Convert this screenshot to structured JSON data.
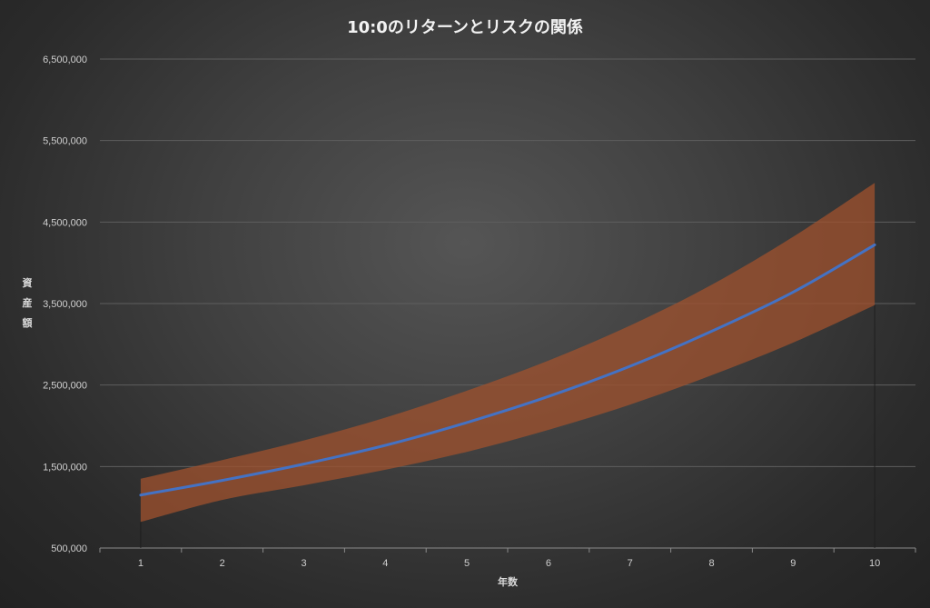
{
  "chart_data": {
    "type": "area",
    "title": "10:0のリターンとリスクの関係",
    "xlabel": "年数",
    "ylabel": "資産額",
    "categories": [
      "1",
      "2",
      "3",
      "4",
      "5",
      "6",
      "7",
      "8",
      "9",
      "10"
    ],
    "ylim": [
      500000,
      6500000
    ],
    "yticks": [
      500000,
      1500000,
      2500000,
      3500000,
      4500000,
      5500000,
      6500000
    ],
    "ytick_labels": [
      "500,000",
      "1,500,000",
      "2,500,000",
      "3,500,000",
      "4,500,000",
      "5,500,000",
      "6,500,000"
    ],
    "grid": true,
    "legend": "none",
    "series": [
      {
        "role": "band-upper",
        "values": [
          1350000,
          1580000,
          1820000,
          2100000,
          2430000,
          2800000,
          3230000,
          3730000,
          4320000,
          4980000
        ]
      },
      {
        "role": "band-lower",
        "values": [
          820000,
          1090000,
          1270000,
          1460000,
          1680000,
          1950000,
          2260000,
          2620000,
          3020000,
          3480000
        ]
      },
      {
        "role": "expected",
        "values": [
          1150000,
          1330000,
          1530000,
          1760000,
          2040000,
          2360000,
          2730000,
          3160000,
          3640000,
          4220000
        ]
      }
    ],
    "colors": {
      "band": "#a0522d",
      "line": "#4472c4",
      "grid": "#5e5e5e"
    }
  }
}
